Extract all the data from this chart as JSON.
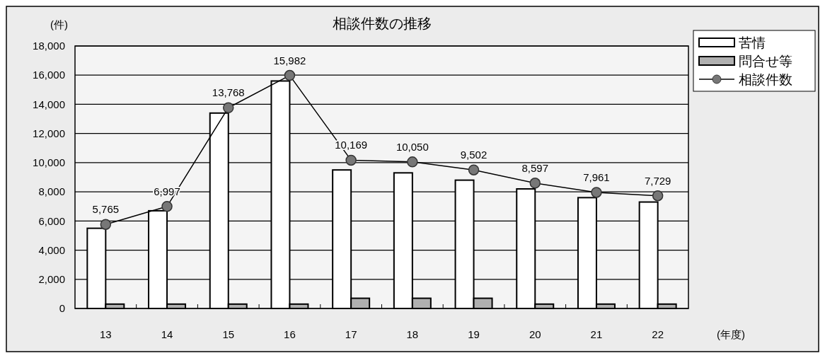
{
  "chart_data": {
    "type": "bar",
    "title": "相談件数の推移",
    "ylabel": "(件)",
    "xlabel": "(年度)",
    "categories": [
      "13",
      "14",
      "15",
      "16",
      "17",
      "18",
      "19",
      "20",
      "21",
      "22"
    ],
    "series": [
      {
        "name": "苦情",
        "color": "#ffffff",
        "values": [
          5500,
          6700,
          13400,
          15600,
          9500,
          9300,
          8800,
          8200,
          7600,
          7300
        ]
      },
      {
        "name": "問合せ等",
        "color": "#b0b0b0",
        "values": [
          300,
          300,
          300,
          300,
          700,
          700,
          700,
          300,
          300,
          300
        ]
      },
      {
        "name": "相談件数",
        "type": "line",
        "color": "#000000",
        "marker": "circle",
        "values": [
          5765,
          6997,
          13768,
          15982,
          10169,
          10050,
          9502,
          8597,
          7961,
          7729
        ],
        "value_labels": [
          "5,765",
          "6,997",
          "13,768",
          "15,982",
          "10,169",
          "10,050",
          "9,502",
          "8,597",
          "7,961",
          "7,729"
        ]
      }
    ],
    "ylim": [
      0,
      18000
    ],
    "yticks": [
      {
        "value": 0,
        "label": "0"
      },
      {
        "value": 2000,
        "label": "2,000"
      },
      {
        "value": 4000,
        "label": "4,000"
      },
      {
        "value": 6000,
        "label": "6,000"
      },
      {
        "value": 8000,
        "label": "8,000"
      },
      {
        "value": 10000,
        "label": "10,000"
      },
      {
        "value": 12000,
        "label": "12,000"
      },
      {
        "value": 14000,
        "label": "14,000"
      },
      {
        "value": 16000,
        "label": "16,000"
      },
      {
        "value": 18000,
        "label": "18,000"
      }
    ],
    "grid": "y",
    "legend": "right"
  }
}
